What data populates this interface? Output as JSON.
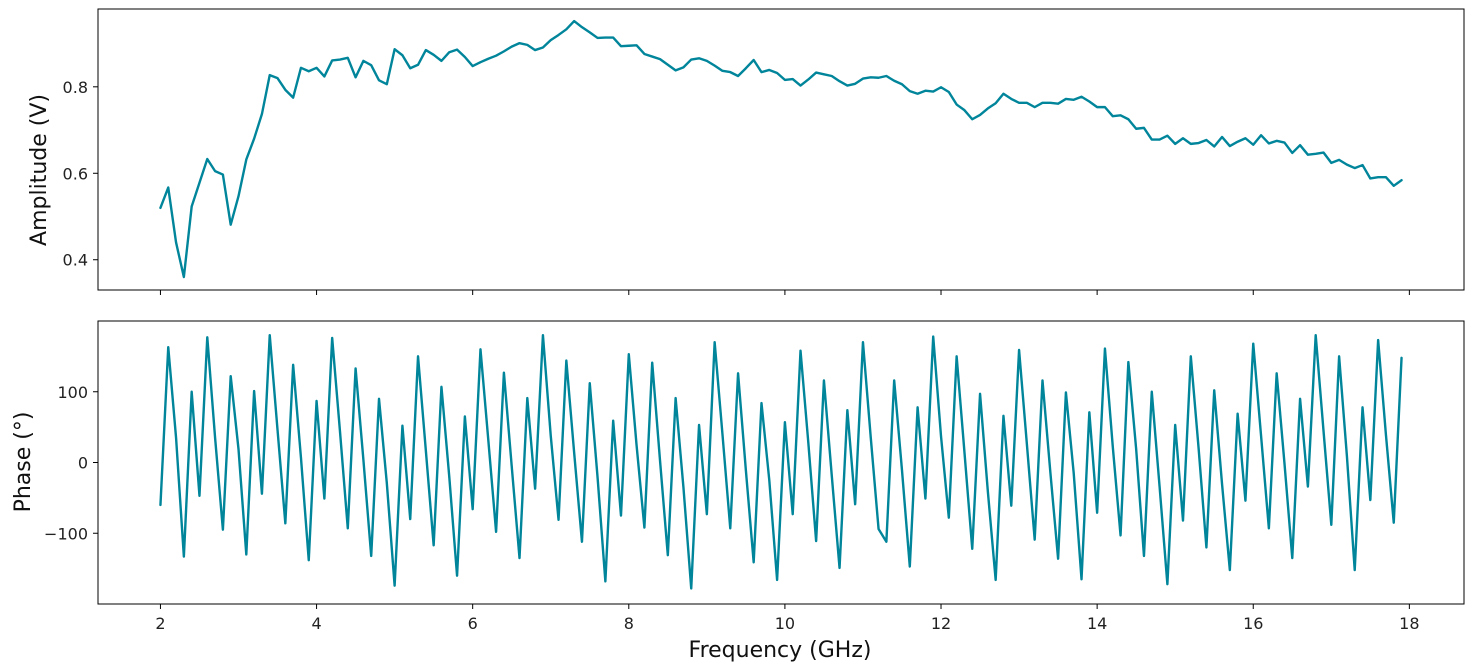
{
  "colors": {
    "line": "#00859b"
  },
  "chart_data": [
    {
      "type": "line",
      "ylabel": "Amplitude (V)",
      "xlabel": "",
      "xlim": [
        1.2,
        18.7
      ],
      "ylim": [
        0.33,
        0.98
      ],
      "xticks": [
        2,
        4,
        6,
        8,
        10,
        12,
        14,
        16,
        18
      ],
      "xtick_labels_visible": false,
      "yticks": [
        0.4,
        0.6,
        0.8
      ],
      "ytick_labels": [
        "0.4",
        "0.6",
        "0.8"
      ],
      "grid": false,
      "x_start": 2.0,
      "x_step": 0.1,
      "series": [
        {
          "values": [
            0.52,
            0.567,
            0.44,
            0.36,
            0.523,
            0.578,
            0.633,
            0.605,
            0.597,
            0.481,
            0.547,
            0.632,
            0.68,
            0.737,
            0.827,
            0.82,
            0.793,
            0.775,
            0.844,
            0.836,
            0.844,
            0.824,
            0.861,
            0.863,
            0.867,
            0.822,
            0.86,
            0.85,
            0.815,
            0.806,
            0.887,
            0.873,
            0.843,
            0.851,
            0.885,
            0.874,
            0.86,
            0.88,
            0.886,
            0.869,
            0.848,
            0.857,
            0.865,
            0.872,
            0.882,
            0.893,
            0.901,
            0.897,
            0.885,
            0.891,
            0.908,
            0.92,
            0.933,
            0.952,
            0.938,
            0.926,
            0.913,
            0.914,
            0.914,
            0.894,
            0.895,
            0.896,
            0.876,
            0.87,
            0.864,
            0.851,
            0.838,
            0.845,
            0.863,
            0.866,
            0.86,
            0.849,
            0.837,
            0.834,
            0.825,
            0.843,
            0.862,
            0.834,
            0.839,
            0.832,
            0.816,
            0.818,
            0.803,
            0.817,
            0.833,
            0.829,
            0.825,
            0.813,
            0.803,
            0.807,
            0.819,
            0.822,
            0.821,
            0.825,
            0.814,
            0.806,
            0.79,
            0.784,
            0.791,
            0.789,
            0.799,
            0.788,
            0.759,
            0.746,
            0.725,
            0.735,
            0.75,
            0.762,
            0.784,
            0.772,
            0.763,
            0.763,
            0.753,
            0.763,
            0.763,
            0.761,
            0.772,
            0.77,
            0.777,
            0.766,
            0.753,
            0.753,
            0.732,
            0.734,
            0.725,
            0.703,
            0.705,
            0.678,
            0.678,
            0.687,
            0.668,
            0.681,
            0.668,
            0.67,
            0.677,
            0.662,
            0.684,
            0.663,
            0.673,
            0.681,
            0.666,
            0.688,
            0.669,
            0.675,
            0.671,
            0.647,
            0.665,
            0.643,
            0.645,
            0.648,
            0.624,
            0.631,
            0.62,
            0.612,
            0.619,
            0.588,
            0.591,
            0.591,
            0.571,
            0.584
          ]
        }
      ]
    },
    {
      "type": "line",
      "ylabel": "Phase (°)",
      "xlabel": "Frequency (GHz)",
      "xlim": [
        1.2,
        18.7
      ],
      "ylim": [
        -200,
        200
      ],
      "xticks": [
        2,
        4,
        6,
        8,
        10,
        12,
        14,
        16,
        18
      ],
      "xtick_labels": [
        "2",
        "4",
        "6",
        "8",
        "10",
        "12",
        "14",
        "16",
        "18"
      ],
      "yticks": [
        -100,
        0,
        100
      ],
      "ytick_labels": [
        "−100",
        "0",
        "100"
      ],
      "grid": false,
      "x_start": 2.0,
      "x_step": 0.1,
      "series": [
        {
          "values": [
            -60,
            163,
            35,
            -133,
            100,
            -47,
            177,
            35,
            -95,
            122,
            19,
            -130,
            101,
            -44,
            180,
            46,
            -86,
            138,
            7,
            -138,
            87,
            -51,
            176,
            44,
            -93,
            133,
            4,
            -132,
            90,
            -29,
            -174,
            52,
            -80,
            150,
            17,
            -117,
            107,
            -20,
            -160,
            65,
            -66,
            160,
            32,
            -98,
            127,
            -5,
            -135,
            91,
            -37,
            180,
            38,
            -81,
            144,
            14,
            -112,
            112,
            -21,
            -168,
            59,
            -75,
            153,
            24,
            -92,
            141,
            3,
            -131,
            91,
            -35,
            -178,
            53,
            -73,
            170,
            40,
            -93,
            126,
            -11,
            -141,
            84,
            -25,
            -166,
            57,
            -73,
            158,
            28,
            -111,
            116,
            -18,
            -149,
            74,
            -59,
            170,
            35,
            -94,
            -112,
            116,
            -11,
            -147,
            78,
            -51,
            178,
            37,
            -78,
            150,
            15,
            -122,
            97,
            -41,
            -166,
            66,
            -61,
            159,
            26,
            -109,
            116,
            -13,
            -136,
            99,
            -15,
            -165,
            71,
            -71,
            161,
            23,
            -103,
            142,
            19,
            -132,
            100,
            -34,
            -172,
            53,
            -82,
            150,
            20,
            -120,
            102,
            -30,
            -152,
            69,
            -54,
            168,
            38,
            -93,
            126,
            -1,
            -135,
            90,
            -34,
            180,
            45,
            -88,
            150,
            9,
            -152,
            78,
            -53,
            173,
            39,
            -85,
            148
          ]
        }
      ]
    }
  ]
}
